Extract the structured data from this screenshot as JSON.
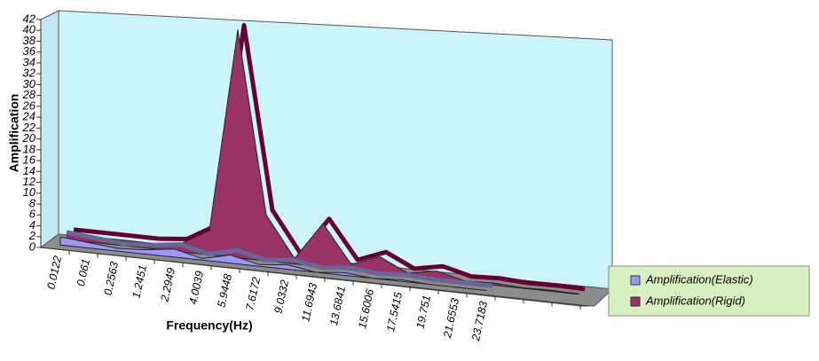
{
  "chart_data": {
    "type": "area",
    "x_label": "Frequency(Hz)",
    "y_label": "Amplification",
    "categories": [
      "0.0122",
      "0.061",
      "0.2563",
      "1.2451",
      "2.2949",
      "4.0039",
      "5.9448",
      "7.6172",
      "9.0332",
      "11.6943",
      "13.6841",
      "15.6006",
      "17.5415",
      "19.751",
      "21.6553",
      "23.7183",
      null,
      null,
      null
    ],
    "series": [
      {
        "name": "Amplification(Elastic)",
        "color": "#9999ff",
        "values": [
          1.5,
          1,
          0.5,
          0.8,
          1.5,
          0.3,
          1.5,
          0.3,
          0.8,
          0,
          0.5,
          0,
          0.3,
          0,
          0,
          0,
          null,
          null,
          null
        ]
      },
      {
        "name": "Amplification(Rigid)",
        "color": "#993366",
        "values": [
          1,
          1,
          1,
          1,
          1.5,
          4.5,
          42,
          8.5,
          1,
          8,
          1,
          3,
          0.5,
          1.5,
          0.2,
          0.4,
          0.1,
          0.2,
          0.1
        ]
      }
    ],
    "ylim": [
      0,
      42
    ],
    "yticks": [
      0,
      2,
      4,
      6,
      8,
      10,
      12,
      14,
      16,
      18,
      20,
      22,
      24,
      26,
      28,
      30,
      32,
      34,
      36,
      38,
      40,
      42
    ],
    "legend": "right"
  }
}
